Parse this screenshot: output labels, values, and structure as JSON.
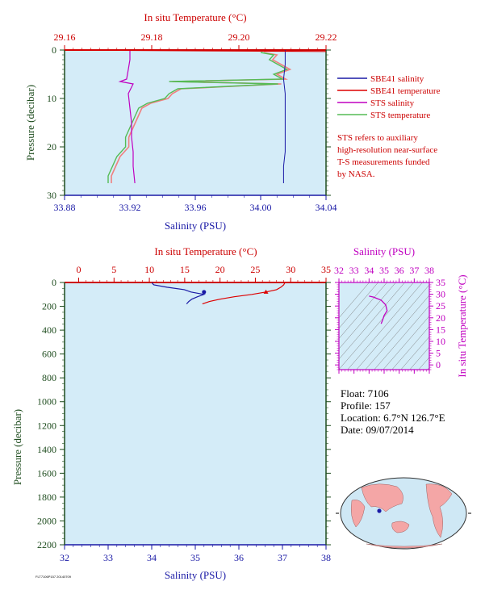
{
  "colors": {
    "plot_bg": "#d4ecf8",
    "sbe_salinity": "#1a1aa6",
    "sbe_temperature": "#dd0000",
    "sts_salinity": "#c000c0",
    "sts_temperature": "#55bb55",
    "sts_temperature_red": "#f08080",
    "axis_red": "#cc0000",
    "axis_blue": "#1a1aa6",
    "axis_green": "#1f4d1f",
    "axis_magenta": "#c000c0"
  },
  "chart_data": [
    {
      "name": "near-surface-profile",
      "type": "line",
      "title_top": "In situ Temperature (°C)",
      "xlabel": "Salinity (PSU)",
      "ylabel": "Pressure (decibar)",
      "x_temp_range": [
        29.16,
        29.22
      ],
      "x_temp_ticks": [
        "29.16",
        "29.18",
        "29.20",
        "29.22"
      ],
      "x_sal_range": [
        33.88,
        34.04
      ],
      "x_sal_ticks": [
        "33.88",
        "33.92",
        "33.96",
        "34.00",
        "34.04"
      ],
      "y_range": [
        0,
        30
      ],
      "y_ticks": [
        "0",
        "10",
        "20",
        "30"
      ],
      "legend": [
        {
          "label": "SBE41 salinity",
          "color": "#1a1aa6"
        },
        {
          "label": "SBE41 temperature",
          "color": "#dd0000"
        },
        {
          "label": "STS salinity",
          "color": "#c000c0"
        },
        {
          "label": "STS temperature",
          "color": "#55bb55"
        }
      ],
      "note": [
        "STS refers to auxiliary",
        "high-resolution near-surface",
        "T-S measurements funded",
        "by NASA."
      ],
      "series": [
        {
          "name": "SBE41 salinity",
          "pressure": [
            0,
            3,
            6,
            9,
            12,
            15,
            18,
            21,
            24,
            27.5
          ],
          "salinity": [
            34.015,
            34.015,
            34.014,
            34.015,
            34.015,
            34.015,
            34.015,
            34.015,
            34.014,
            34.014
          ]
        },
        {
          "name": "SBE41 temperature",
          "pressure": [
            0,
            0.3
          ],
          "temperature": [
            29.16,
            29.22
          ]
        },
        {
          "name": "STS salinity",
          "pressure": [
            0,
            2,
            4,
            6,
            6.5,
            7,
            9,
            12,
            15,
            18,
            21,
            24,
            27.5
          ],
          "salinity": [
            33.92,
            33.92,
            33.919,
            33.918,
            33.914,
            33.922,
            33.919,
            33.92,
            33.921,
            33.921,
            33.922,
            33.922,
            33.923
          ]
        },
        {
          "name": "STS temperature",
          "pressure": [
            0.5,
            1,
            2,
            3,
            4,
            5,
            6,
            6.5,
            7,
            8,
            9,
            10,
            11,
            12,
            14,
            16,
            18,
            20,
            22,
            24,
            26,
            27.5
          ],
          "temperature": [
            29.205,
            29.208,
            29.207,
            29.209,
            29.211,
            29.208,
            29.21,
            29.184,
            29.209,
            29.186,
            29.184,
            29.183,
            29.179,
            29.177,
            29.176,
            29.175,
            29.174,
            29.174,
            29.172,
            29.171,
            29.17,
            29.17
          ]
        }
      ]
    },
    {
      "name": "full-depth-profile",
      "type": "line",
      "title_top": "In situ Temperature (°C)",
      "xlabel": "Salinity (PSU)",
      "ylabel": "Pressure (decibar)",
      "x_temp_range": [
        -2,
        35
      ],
      "x_temp_ticks": [
        "0",
        "5",
        "10",
        "15",
        "20",
        "25",
        "30",
        "35"
      ],
      "x_sal_range": [
        32,
        38
      ],
      "x_sal_ticks": [
        "32",
        "33",
        "34",
        "35",
        "36",
        "37",
        "38"
      ],
      "y_range": [
        0,
        2200
      ],
      "y_ticks": [
        "0",
        "200",
        "400",
        "600",
        "800",
        "1000",
        "1200",
        "1400",
        "1600",
        "1800",
        "2000",
        "2200"
      ],
      "series": [
        {
          "name": "SBE41 salinity",
          "pressure": [
            0,
            10,
            20,
            40,
            60,
            80,
            100,
            120,
            140,
            160,
            180
          ],
          "salinity": [
            34.01,
            34.02,
            34.05,
            34.35,
            34.75,
            34.9,
            35.2,
            35.05,
            34.92,
            34.85,
            34.8
          ]
        },
        {
          "name": "SBE41 temperature",
          "pressure": [
            0,
            20,
            40,
            60,
            80,
            100,
            120,
            140,
            160,
            180
          ],
          "temperature": [
            29.2,
            29.0,
            28.6,
            28.0,
            26.5,
            24.5,
            22.0,
            20.0,
            18.5,
            17.5
          ]
        }
      ]
    },
    {
      "name": "ts-diagram",
      "type": "line",
      "title_top": "Salinity (PSU)",
      "ylabel": "In situ Temperature (°C)",
      "x_range": [
        32,
        38
      ],
      "x_ticks": [
        "32",
        "33",
        "34",
        "35",
        "36",
        "37",
        "38"
      ],
      "y_range": [
        -2,
        35
      ],
      "y_ticks": [
        "0",
        "5",
        "10",
        "15",
        "20",
        "25",
        "30",
        "35"
      ],
      "series": [
        {
          "name": "T-S",
          "salinity": [
            34.0,
            34.3,
            34.8,
            35.1,
            35.2,
            35.0,
            34.9,
            34.8
          ],
          "temperature": [
            29.2,
            28.8,
            27.5,
            25.5,
            23.0,
            21.0,
            19.0,
            17.5
          ]
        }
      ]
    }
  ],
  "float_info": {
    "float": "Float:  7106",
    "profile": "Profile:  157",
    "location": "Location:  6.7°N  126.7°E",
    "date": "Date:  09/07/2014"
  },
  "footer_code": "FLT7106P157 20140709"
}
